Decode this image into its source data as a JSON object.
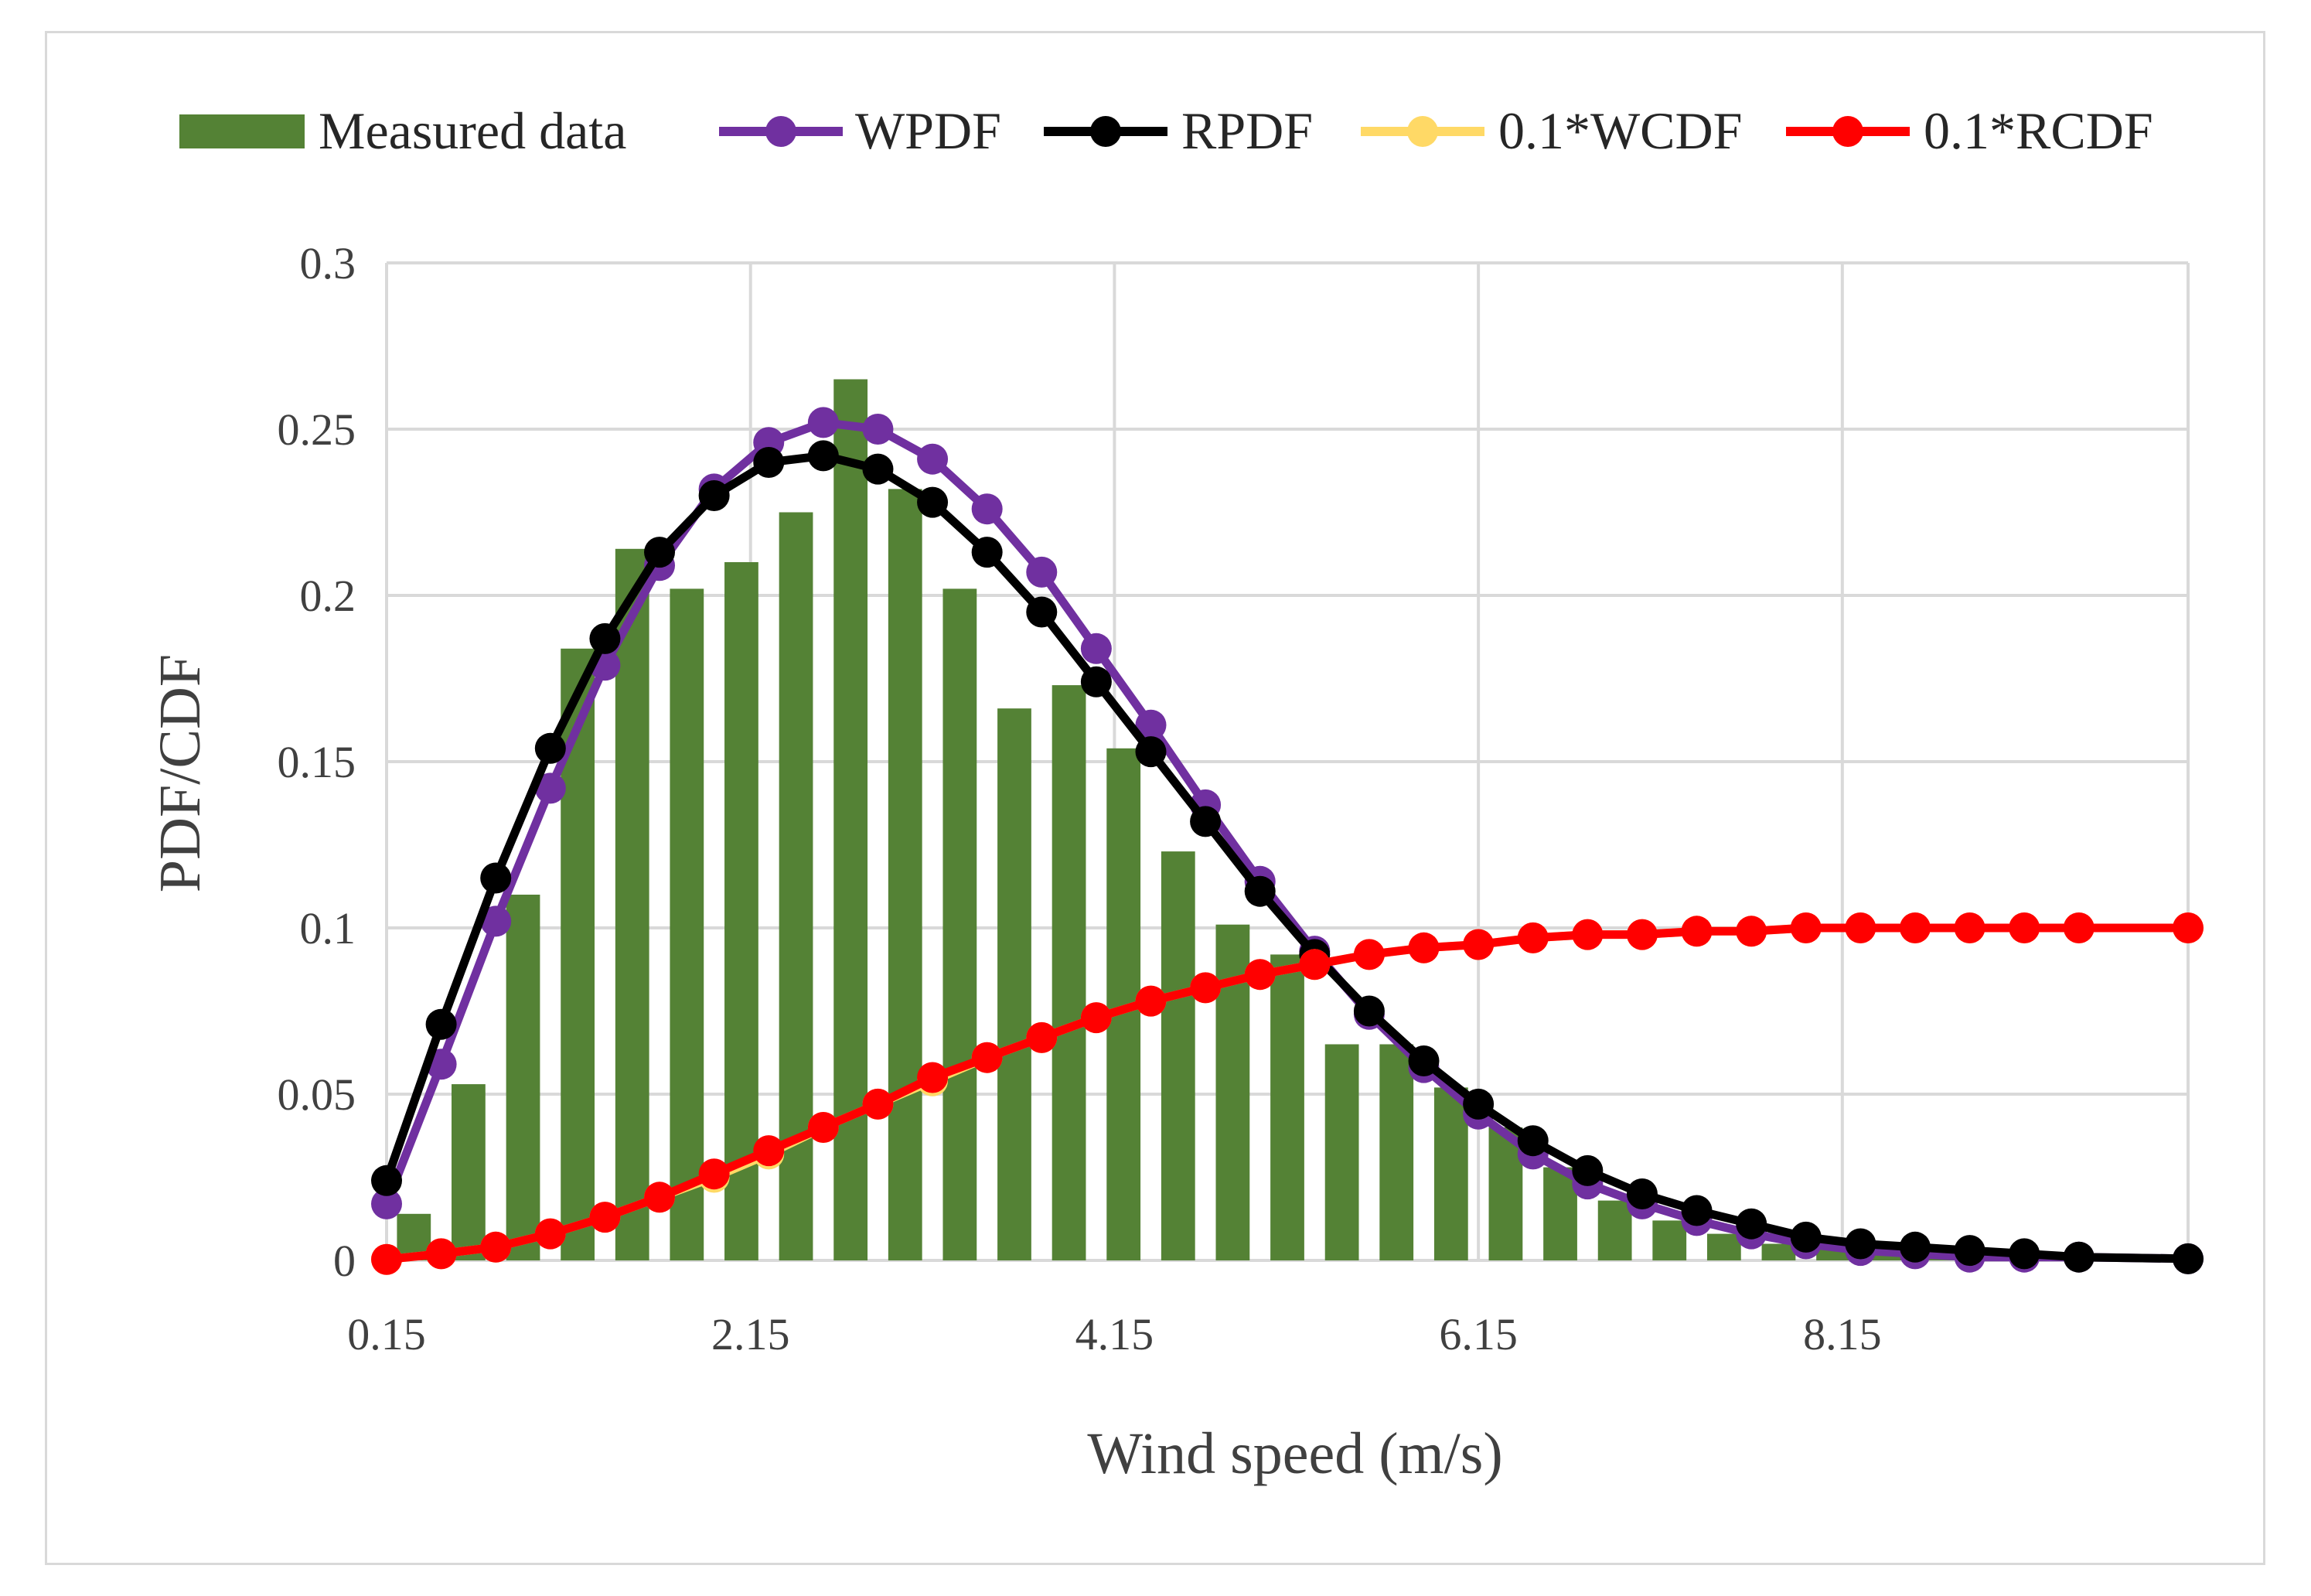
{
  "chart_data": {
    "type": "bar+line",
    "title": "",
    "xlabel": "Wind speed (m/s)",
    "ylabel": "PDF/CDF",
    "ylim": [
      0,
      0.3
    ],
    "y_ticks": [
      "0",
      "0.05",
      "0.1",
      "0.15",
      "0.2",
      "0.25",
      "0.3"
    ],
    "x_tick_labels": [
      "0.15",
      "2.15",
      "4.15",
      "6.15",
      "8.15"
    ],
    "x_range": [
      0.15,
      10.05
    ],
    "x": [
      0.15,
      0.45,
      0.75,
      1.05,
      1.35,
      1.65,
      1.95,
      2.25,
      2.55,
      2.85,
      3.15,
      3.45,
      3.75,
      4.05,
      4.35,
      4.65,
      4.95,
      5.25,
      5.55,
      5.85,
      6.15,
      6.45,
      6.75,
      7.05,
      7.35,
      7.65,
      7.95,
      8.25,
      8.55,
      8.85,
      9.15,
      9.45,
      10.05
    ],
    "bars": {
      "name": "Measured data",
      "color": "#548235",
      "x": [
        0.3,
        0.6,
        0.9,
        1.2,
        1.5,
        1.8,
        2.1,
        2.4,
        2.7,
        3.0,
        3.3,
        3.6,
        3.9,
        4.2,
        4.5,
        4.8,
        5.1,
        5.4,
        5.7,
        6.0,
        6.3,
        6.6,
        6.9,
        7.2,
        7.5,
        7.8,
        8.1,
        8.4,
        8.7,
        9.0,
        9.3
      ],
      "values": [
        0.014,
        0.053,
        0.11,
        0.184,
        0.214,
        0.202,
        0.21,
        0.225,
        0.265,
        0.232,
        0.202,
        0.166,
        0.173,
        0.154,
        0.123,
        0.101,
        0.092,
        0.065,
        0.065,
        0.052,
        0.04,
        0.028,
        0.018,
        0.012,
        0.008,
        0.005,
        0.004,
        0.003,
        0.002,
        0.001,
        0.001
      ]
    },
    "series": [
      {
        "name": "WPDF",
        "color": "#7030a0",
        "values": [
          0.017,
          0.059,
          0.102,
          0.142,
          0.179,
          0.209,
          0.232,
          0.246,
          0.252,
          0.25,
          0.241,
          0.226,
          0.207,
          0.184,
          0.161,
          0.137,
          0.114,
          0.093,
          0.074,
          0.058,
          0.044,
          0.032,
          0.023,
          0.017,
          0.012,
          0.008,
          0.005,
          0.003,
          0.002,
          0.001,
          0.001,
          0.001,
          0.0005
        ]
      },
      {
        "name": "RPDF",
        "color": "#000000",
        "values": [
          0.024,
          0.071,
          0.115,
          0.154,
          0.187,
          0.213,
          0.23,
          0.24,
          0.242,
          0.238,
          0.228,
          0.213,
          0.195,
          0.174,
          0.153,
          0.132,
          0.111,
          0.092,
          0.075,
          0.06,
          0.047,
          0.036,
          0.027,
          0.02,
          0.015,
          0.011,
          0.007,
          0.005,
          0.004,
          0.003,
          0.002,
          0.001,
          0.0005
        ]
      },
      {
        "name": "0.1*WCDF",
        "color": "#ffd966",
        "values": [
          0.0003,
          0.002,
          0.004,
          0.008,
          0.013,
          0.019,
          0.025,
          0.032,
          0.04,
          0.047,
          0.054,
          0.061,
          0.067,
          0.073,
          0.078,
          0.082,
          0.086,
          0.089,
          0.092,
          0.094,
          0.095,
          0.097,
          0.098,
          0.098,
          0.099,
          0.099,
          0.1,
          0.1,
          0.1,
          0.1,
          0.1,
          0.1,
          0.1
        ]
      },
      {
        "name": "0.1*RCDF",
        "color": "#ff0000",
        "values": [
          0.0003,
          0.002,
          0.004,
          0.008,
          0.013,
          0.019,
          0.026,
          0.033,
          0.04,
          0.047,
          0.055,
          0.061,
          0.067,
          0.073,
          0.078,
          0.082,
          0.086,
          0.089,
          0.092,
          0.094,
          0.095,
          0.097,
          0.098,
          0.098,
          0.099,
          0.099,
          0.1,
          0.1,
          0.1,
          0.1,
          0.1,
          0.1,
          0.1
        ]
      }
    ]
  }
}
